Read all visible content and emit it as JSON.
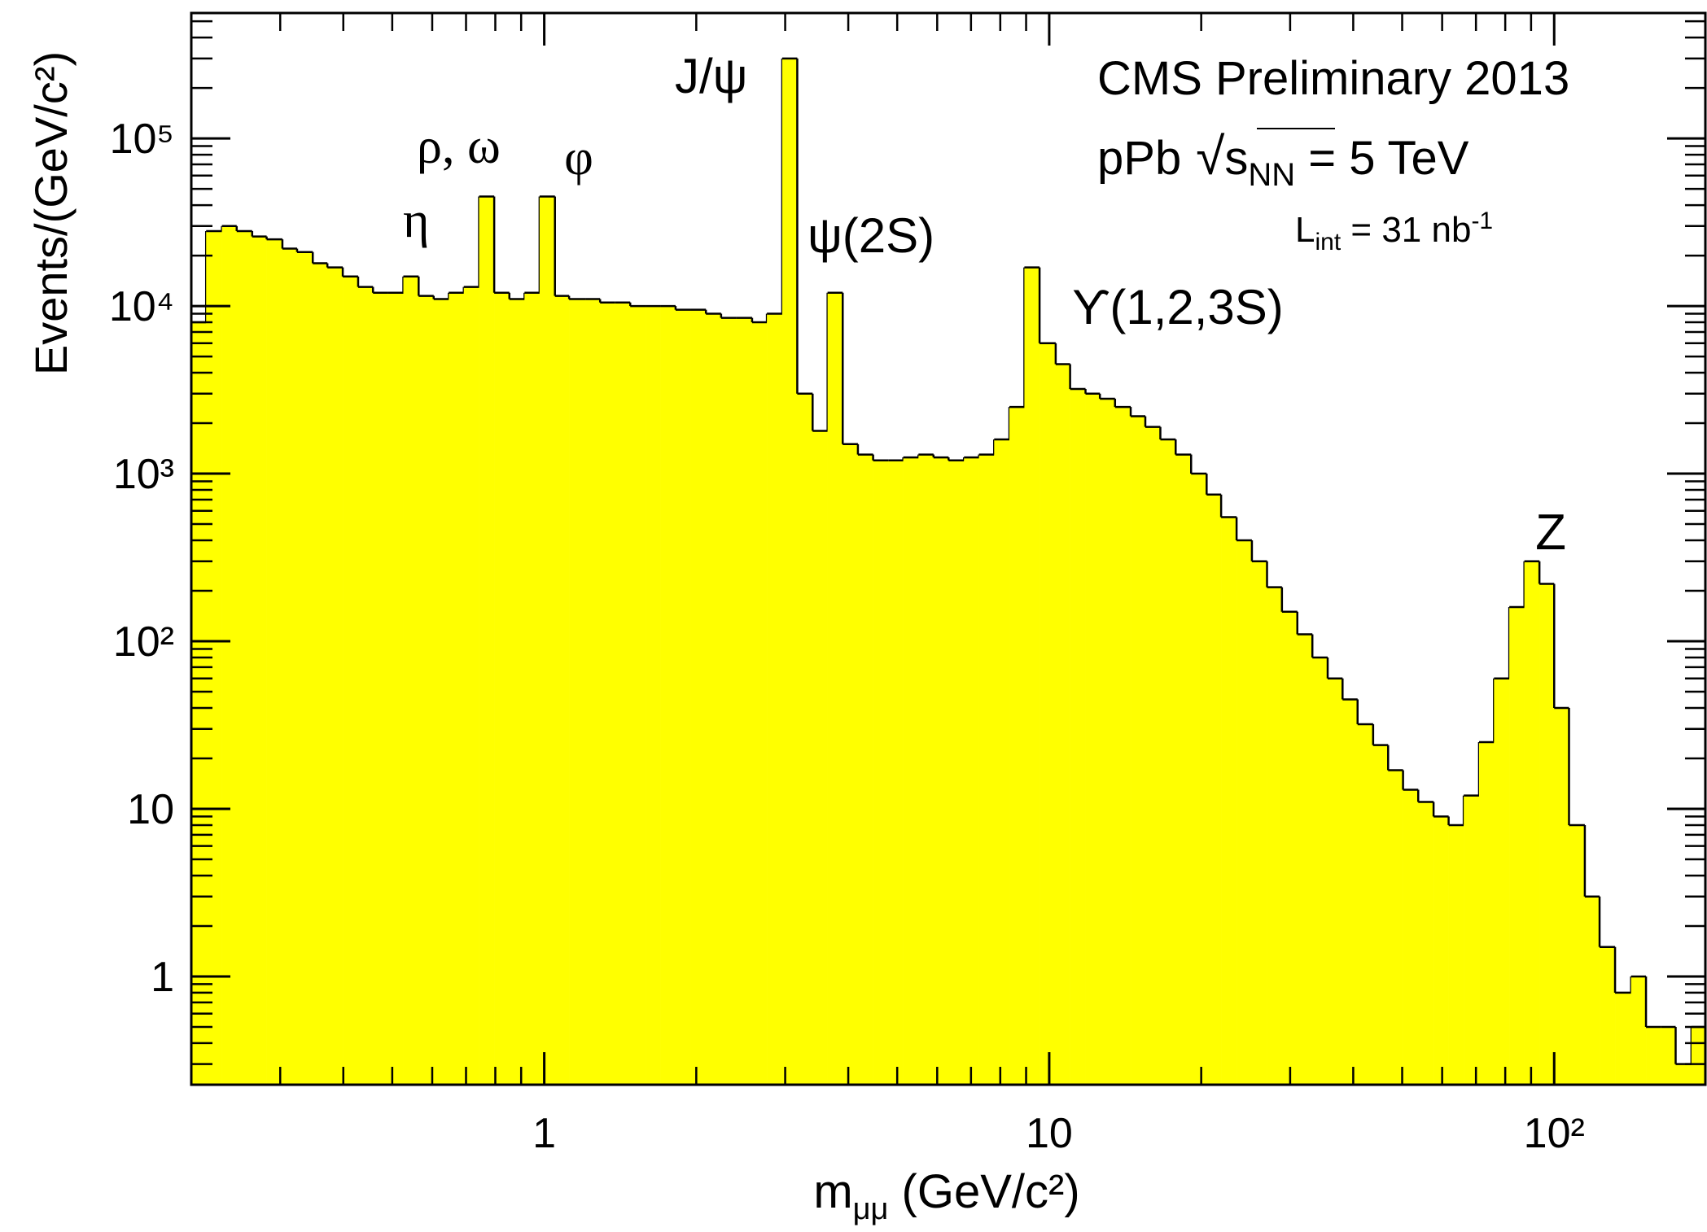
{
  "chart_data": {
    "type": "histogram",
    "y_label": "Events/(GeV/c²)",
    "x_label": {
      "main": "m",
      "sub": "μμ",
      "rest": " (GeV/c²)"
    },
    "annotations": {
      "experiment": "CMS Preliminary 2013",
      "energy": {
        "system": "pPb",
        "root": "√",
        "s": "s",
        "sub": "NN",
        "value": " = 5 TeV"
      },
      "lumi": {
        "symbol": "L",
        "sub": "int",
        "value": " = 31 nb",
        "sup": "-1"
      },
      "eta": "η",
      "rho_omega": "ρ, ω",
      "phi": "φ",
      "jpsi": "J/ψ",
      "psi2s": "ψ(2S)",
      "upsilon": "ϒ(1,2,3S)",
      "z": "Z"
    },
    "bins": [
      0.2,
      0.214,
      0.23,
      0.246,
      0.264,
      0.282,
      0.303,
      0.324,
      0.348,
      0.372,
      0.399,
      0.428,
      0.458,
      0.491,
      0.526,
      0.564,
      0.604,
      0.647,
      0.693,
      0.743,
      0.796,
      0.853,
      0.914,
      0.979,
      1.05,
      1.12,
      1.21,
      1.29,
      1.38,
      1.48,
      1.59,
      1.7,
      1.82,
      1.95,
      2.09,
      2.24,
      2.4,
      2.58,
      2.76,
      2.96,
      3.17,
      3.4,
      3.64,
      3.9,
      4.18,
      4.48,
      4.8,
      5.14,
      5.51,
      5.9,
      6.32,
      6.78,
      7.26,
      7.78,
      8.34,
      8.93,
      9.57,
      10.3,
      11.0,
      11.8,
      12.6,
      13.5,
      14.5,
      15.5,
      16.6,
      17.8,
      19.1,
      20.5,
      21.9,
      23.5,
      25.2,
      27.0,
      28.9,
      31.0,
      33.2,
      35.6,
      38.1,
      40.8,
      43.8,
      46.9,
      50.2,
      53.8,
      57.7,
      61.8,
      66.2,
      71.0,
      76.0,
      81.5,
      87.3,
      93.5,
      100,
      107,
      115,
      123,
      132,
      142,
      152,
      163,
      174,
      187,
      200
    ],
    "counts": [
      8000,
      28000,
      30000,
      28000,
      26000,
      25000,
      22000,
      21000,
      18000,
      17000,
      15000,
      13000,
      12000,
      12000,
      15000,
      11500,
      11000,
      12000,
      13000,
      45000,
      12000,
      11000,
      12000,
      45000,
      11500,
      11000,
      11000,
      10500,
      10500,
      10000,
      10000,
      10000,
      9500,
      9500,
      9000,
      8500,
      8500,
      8000,
      9000,
      300000,
      3000,
      1800,
      12000,
      1500,
      1300,
      1200,
      1200,
      1250,
      1300,
      1250,
      1200,
      1250,
      1300,
      1600,
      2500,
      17000,
      6000,
      4500,
      3200,
      3000,
      2800,
      2500,
      2200,
      1900,
      1600,
      1300,
      1000,
      750,
      550,
      400,
      300,
      210,
      150,
      110,
      80,
      60,
      45,
      32,
      24,
      17,
      13,
      11,
      9,
      8,
      12,
      25,
      60,
      160,
      300,
      220,
      40,
      8,
      3,
      1.5,
      0.8,
      1,
      0.5,
      0.5,
      0.3,
      0.5
    ],
    "color": "#ffff00",
    "line_color": "#000000",
    "log_x": true,
    "log_y": true,
    "xlim": [
      0.2,
      200
    ],
    "ylim": [
      0.226,
      560000
    ],
    "xticks": [
      1,
      10,
      {
        "value": 100,
        "label": "10²"
      }
    ],
    "yticks": [
      1,
      10,
      {
        "value": 100,
        "label": "10²"
      },
      {
        "value": 1000,
        "label": "10³"
      },
      {
        "value": 10000,
        "label": "10⁴"
      },
      {
        "value": 100000,
        "label": "10⁵"
      }
    ],
    "xminorticks": [
      0.3,
      0.4,
      0.5,
      0.6,
      0.7,
      0.8,
      0.9,
      2,
      3,
      4,
      5,
      6,
      7,
      8,
      9,
      20,
      30,
      40,
      50,
      60,
      70,
      80,
      90
    ],
    "yminorticks": [
      0.3,
      0.4,
      0.5,
      0.6,
      0.7,
      0.8,
      0.9,
      2,
      3,
      4,
      5,
      6,
      7,
      8,
      9,
      20,
      30,
      40,
      50,
      60,
      70,
      80,
      90,
      200,
      300,
      400,
      500,
      600,
      700,
      800,
      900,
      2000,
      3000,
      4000,
      5000,
      6000,
      7000,
      8000,
      9000,
      20000,
      30000,
      40000,
      50000,
      60000,
      70000,
      80000,
      90000,
      200000,
      300000,
      400000,
      500000
    ]
  }
}
